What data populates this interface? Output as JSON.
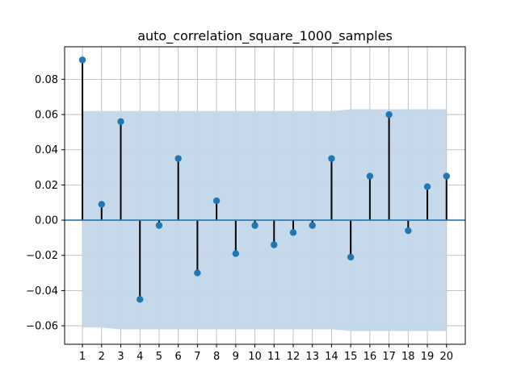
{
  "chart_data": {
    "type": "stem",
    "title": "auto_correlation_square_1000_samples",
    "xlabel": "",
    "ylabel": "",
    "x": [
      1,
      2,
      3,
      4,
      5,
      6,
      7,
      8,
      9,
      10,
      11,
      12,
      13,
      14,
      15,
      16,
      17,
      18,
      19,
      20
    ],
    "values": [
      0.091,
      0.009,
      0.056,
      -0.045,
      -0.003,
      0.035,
      -0.03,
      0.011,
      -0.019,
      -0.003,
      -0.014,
      -0.007,
      -0.003,
      0.035,
      -0.021,
      0.025,
      0.06,
      -0.006,
      0.019,
      0.025
    ],
    "confidence_band": {
      "upper": [
        0.062,
        0.062,
        0.062,
        0.062,
        0.062,
        0.062,
        0.062,
        0.062,
        0.062,
        0.062,
        0.062,
        0.062,
        0.062,
        0.062,
        0.063,
        0.063,
        0.063,
        0.063,
        0.063,
        0.063
      ],
      "lower": [
        -0.061,
        -0.061,
        -0.062,
        -0.062,
        -0.062,
        -0.062,
        -0.062,
        -0.062,
        -0.062,
        -0.062,
        -0.062,
        -0.062,
        -0.062,
        -0.062,
        -0.063,
        -0.063,
        -0.063,
        -0.063,
        -0.063,
        -0.063
      ]
    },
    "xlim": [
      0.07,
      20.98
    ],
    "ylim": [
      -0.0705,
      0.0985
    ],
    "yticks": [
      -0.06,
      -0.04,
      -0.02,
      0.0,
      0.02,
      0.04,
      0.06,
      0.08
    ],
    "ytick_labels": [
      "−0.06",
      "−0.04",
      "−0.02",
      "0.00",
      "0.02",
      "0.04",
      "0.06",
      "0.08"
    ],
    "xticks": [
      1,
      2,
      3,
      4,
      5,
      6,
      7,
      8,
      9,
      10,
      11,
      12,
      13,
      14,
      15,
      16,
      17,
      18,
      19,
      20
    ],
    "xtick_labels": [
      "1",
      "2",
      "3",
      "4",
      "5",
      "6",
      "7",
      "8",
      "9",
      "10",
      "11",
      "12",
      "13",
      "14",
      "15",
      "16",
      "17",
      "18",
      "19",
      "20"
    ],
    "grid": true,
    "legend": "none",
    "colors": {
      "marker": "#1f77b4",
      "stem": "#000000",
      "band": "#c3d7ea",
      "baseline": "#1f77b4",
      "grid": "#b0b0b0"
    }
  }
}
